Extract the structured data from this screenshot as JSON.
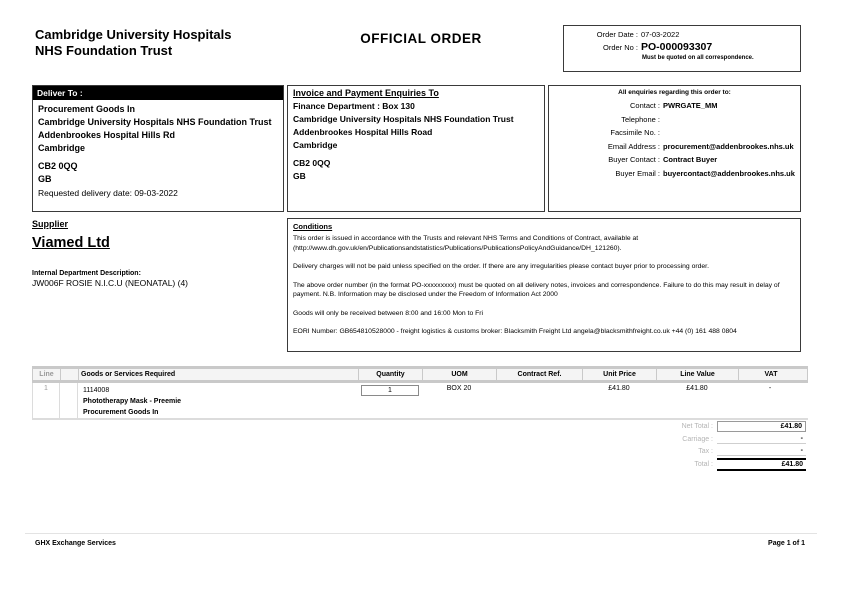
{
  "page": {
    "org_name_line1": "Cambridge University Hospitals",
    "org_name_line2": "NHS Foundation Trust",
    "doc_title": "OFFICIAL ORDER",
    "footer_left": "GHX Exchange Services",
    "footer_right": "Page 1 of 1"
  },
  "order_box": {
    "date_label": "Order Date :",
    "date_value": "07-03-2022",
    "no_label": "Order No :",
    "no_value": "PO-000093307",
    "note": "Must be quoted on all correspondence."
  },
  "deliver_to": {
    "header": "Deliver To :",
    "lines": [
      "Procurement Goods In",
      "Cambridge University Hospitals NHS Foundation Trust",
      "Addenbrookes Hospital Hills Rd",
      "Cambridge",
      "CB2 0QQ",
      "GB"
    ],
    "requested_delivery": "Requested delivery date: 09-03-2022"
  },
  "invoice_to": {
    "header": "Invoice and Payment Enquiries To",
    "lines": [
      "Finance Department : Box 130",
      "Cambridge University Hospitals NHS Foundation Trust",
      "Addenbrookes Hospital Hills Road",
      "Cambridge",
      "CB2 0QQ",
      "GB"
    ]
  },
  "enquiries": {
    "header": "All enquiries regarding this order to:",
    "rows": [
      {
        "label": "Contact :",
        "value": "PWRGATE_MM"
      },
      {
        "label": "Telephone :",
        "value": ""
      },
      {
        "label": "Facsimile No. :",
        "value": ""
      },
      {
        "label": "Email Address :",
        "value": "procurement@addenbrookes.nhs.uk"
      },
      {
        "label": "Buyer Contact :",
        "value": "Contract Buyer"
      },
      {
        "label": "Buyer Email :",
        "value": "buyercontact@addenbrookes.nhs.uk"
      }
    ]
  },
  "supplier": {
    "header": "Supplier",
    "name": "Viamed Ltd",
    "internal_dept_label": "Internal Department Description:",
    "internal_dept_value": "JW006F ROSIE N.I.C.U (NEONATAL) (4)"
  },
  "conditions": {
    "header": "Conditions",
    "paragraphs": [
      "This order is issued in accordance with the Trusts and relevant NHS Terms and Conditions of Contract, available at (http://www.dh.gov.uk/en/Publicationsandstatistics/Publications/PublicationsPolicyAndGuidance/DH_121260).",
      "Delivery charges will not be paid unless specified on the order. If there are any irregularities please contact buyer prior to processing order.",
      "The above order number (in the format PO-xxxxxxxxx) must be quoted on all delivery notes, invoices and correspondence. Failure to do this may result in delay of payment. N.B. Information may be disclosed under the Freedom of Information Act 2000",
      "Goods will only be received between 8:00 and 16:00 Mon to Fri",
      "EORI Number: GB654810528000 - freight logistics & customs broker: Blacksmith Freight Ltd angela@blacksmithfreight.co.uk +44 (0) 161 488 0804"
    ]
  },
  "items_table": {
    "headers": [
      "Line",
      "",
      "Goods or Services Required",
      "Quantity",
      "UOM",
      "Contract Ref.",
      "Unit Price",
      "Line Value",
      "VAT"
    ],
    "rows": [
      {
        "line": "1",
        "code": "1114008",
        "description": "Phototherapy Mask - Preemie",
        "note": "Procurement Goods In",
        "quantity": "1",
        "uom": "BOX 20",
        "contract_ref": "",
        "unit_price": "£41.80",
        "line_value": "£41.80",
        "vat": "-"
      }
    ]
  },
  "totals": {
    "rows": [
      {
        "label": "Net Total :",
        "value": "£41.80"
      },
      {
        "label": "Carriage :",
        "value": "-"
      },
      {
        "label": "Tax :",
        "value": "-"
      },
      {
        "label": "Total :",
        "value": "£41.80"
      }
    ]
  }
}
